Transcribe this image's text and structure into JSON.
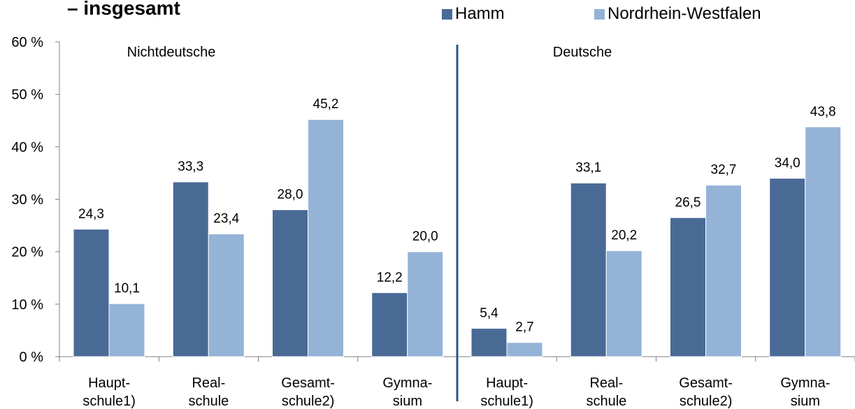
{
  "title": "– insgesamt",
  "colors": {
    "hamm": "#4a6a96",
    "nrw": "#95b3d7",
    "divider": "#2e5583",
    "axis": "#7f7f7f"
  },
  "legend": [
    {
      "label": "Hamm",
      "color": "#4a6a96"
    },
    {
      "label": "Nordrhein-Westfalen",
      "color": "#95b3d7"
    }
  ],
  "chart_data": {
    "type": "bar",
    "title": "– insgesamt",
    "ylim": [
      0,
      60
    ],
    "yticks": [
      "0 %",
      "10 %",
      "20 %",
      "30 %",
      "40 %",
      "50 %",
      "60 %"
    ],
    "grid": false,
    "legend_position": "top",
    "groups": [
      {
        "label": "Nichtdeutsche",
        "categories": [
          [
            "Haupt-",
            "schule1)"
          ],
          [
            "Real-",
            "schule"
          ],
          [
            "Gesamt-",
            "schule2)"
          ],
          [
            "Gymna-",
            "sium"
          ]
        ]
      },
      {
        "label": "Deutsche",
        "categories": [
          [
            "Haupt-",
            "schule1)"
          ],
          [
            "Real-",
            "schule"
          ],
          [
            "Gesamt-",
            "schule2)"
          ],
          [
            "Gymna-",
            "sium"
          ]
        ]
      }
    ],
    "series": [
      {
        "name": "Hamm",
        "values": [
          24.3,
          33.3,
          28.0,
          12.2,
          5.4,
          33.1,
          26.5,
          34.0
        ],
        "labels": [
          "24,3",
          "33,3",
          "28,0",
          "12,2",
          "5,4",
          "33,1",
          "26,5",
          "34,0"
        ]
      },
      {
        "name": "Nordrhein-Westfalen",
        "values": [
          10.1,
          23.4,
          45.2,
          20.0,
          2.7,
          20.2,
          32.7,
          43.8
        ],
        "labels": [
          "10,1",
          "23,4",
          "45,2",
          "20,0",
          "2,7",
          "20,2",
          "32,7",
          "43,8"
        ]
      }
    ]
  }
}
